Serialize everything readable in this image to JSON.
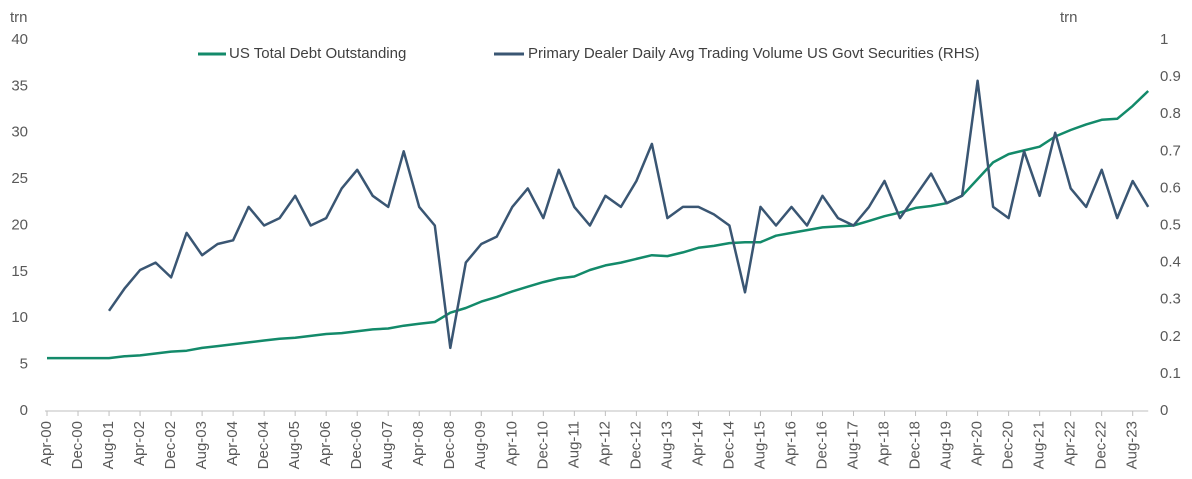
{
  "chart_data": {
    "type": "line",
    "y_label": "trn",
    "y2_label": "trn",
    "categories": [
      "Apr-00",
      null,
      "Dec-00",
      null,
      "Aug-01",
      null,
      "Apr-02",
      null,
      "Dec-02",
      null,
      "Aug-03",
      null,
      "Apr-04",
      null,
      "Dec-04",
      null,
      "Aug-05",
      null,
      "Apr-06",
      null,
      "Dec-06",
      null,
      "Aug-07",
      null,
      "Apr-08",
      null,
      "Dec-08",
      null,
      "Aug-09",
      null,
      "Apr-10",
      null,
      "Dec-10",
      null,
      "Aug-11",
      null,
      "Apr-12",
      null,
      "Dec-12",
      null,
      "Aug-13",
      null,
      "Apr-14",
      null,
      "Dec-14",
      null,
      "Aug-15",
      null,
      "Apr-16",
      null,
      "Dec-16",
      null,
      "Aug-17",
      null,
      "Apr-18",
      null,
      "Dec-18",
      null,
      "Aug-19",
      null,
      "Apr-20",
      null,
      "Dec-20",
      null,
      "Aug-21",
      null,
      "Apr-22",
      null,
      "Dec-22",
      null,
      "Aug-23",
      null
    ],
    "series": [
      {
        "name": "US Total Debt Outstanding",
        "color": "#138a6a",
        "values": [
          5.7,
          5.7,
          5.7,
          5.7,
          5.7,
          5.9,
          6.0,
          6.2,
          6.4,
          6.5,
          6.8,
          7.0,
          7.2,
          7.4,
          7.6,
          7.8,
          7.9,
          8.1,
          8.3,
          8.4,
          8.6,
          8.8,
          8.9,
          9.2,
          9.4,
          9.6,
          10.6,
          11.1,
          11.8,
          12.3,
          12.9,
          13.4,
          13.9,
          14.3,
          14.5,
          15.2,
          15.7,
          16.0,
          16.4,
          16.8,
          16.7,
          17.1,
          17.6,
          17.8,
          18.1,
          18.2,
          18.2,
          18.9,
          19.2,
          19.5,
          19.8,
          19.9,
          20.0,
          20.5,
          21.0,
          21.4,
          21.9,
          22.1,
          22.4,
          23.2,
          25.0,
          26.8,
          27.7,
          28.1,
          28.5,
          29.6,
          30.3,
          30.9,
          31.4,
          31.5,
          32.9,
          34.5
        ]
      },
      {
        "name": "Primary Dealer Daily Avg Trading Volume US Govt Securities (RHS)",
        "color": "#3a5673",
        "axis": "y2",
        "values": [
          null,
          null,
          null,
          null,
          0.27,
          0.33,
          0.38,
          0.4,
          0.36,
          0.48,
          0.42,
          0.45,
          0.46,
          0.55,
          0.5,
          0.52,
          0.58,
          0.5,
          0.52,
          0.6,
          0.65,
          0.58,
          0.55,
          0.7,
          0.55,
          0.5,
          0.17,
          0.4,
          0.45,
          0.47,
          0.55,
          0.6,
          0.52,
          0.65,
          0.55,
          0.5,
          0.58,
          0.55,
          0.62,
          0.72,
          0.52,
          0.55,
          0.55,
          0.53,
          0.5,
          0.32,
          0.55,
          0.5,
          0.55,
          0.5,
          0.58,
          0.52,
          0.5,
          0.55,
          0.62,
          0.52,
          0.58,
          0.64,
          0.56,
          0.58,
          0.89,
          0.55,
          0.52,
          0.7,
          0.58,
          0.75,
          0.6,
          0.55,
          0.65,
          0.52,
          0.62,
          0.55
        ]
      }
    ],
    "ylim": [
      0,
      40
    ],
    "yticks": [
      0,
      5,
      10,
      15,
      20,
      25,
      30,
      35,
      40
    ],
    "y2lim": [
      0,
      1
    ],
    "y2ticks": [
      0,
      0.1,
      0.2,
      0.3,
      0.4,
      0.5,
      0.6,
      0.7,
      0.8,
      0.9,
      1
    ],
    "legend": "top"
  }
}
